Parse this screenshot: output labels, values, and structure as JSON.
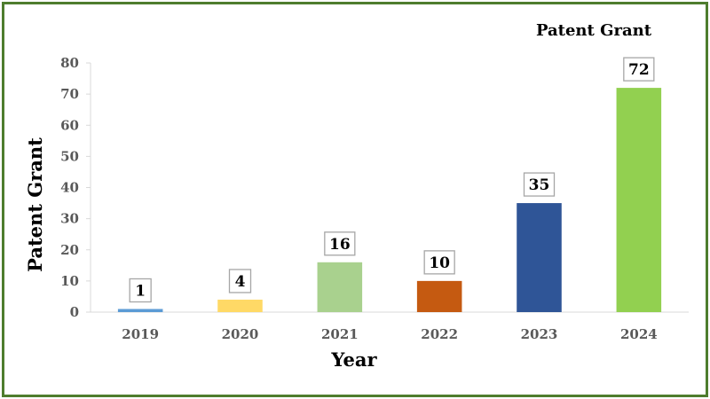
{
  "chart_data": {
    "type": "bar",
    "title": "Patent Grant",
    "xlabel": "Year",
    "ylabel": "Patent Grant",
    "categories": [
      "2019",
      "2020",
      "2021",
      "2022",
      "2023",
      "2024"
    ],
    "values": [
      1,
      4,
      16,
      10,
      35,
      72
    ],
    "bar_colors": [
      "#5b9bd5",
      "#ffd966",
      "#a9d18e",
      "#c55a11",
      "#2f5597",
      "#92d050"
    ],
    "ylim": [
      0,
      80
    ],
    "yticks": [
      0,
      10,
      20,
      30,
      40,
      50,
      60,
      70,
      80
    ],
    "grid": false,
    "data_labels": true
  },
  "frame_color": "#4e7d2e"
}
